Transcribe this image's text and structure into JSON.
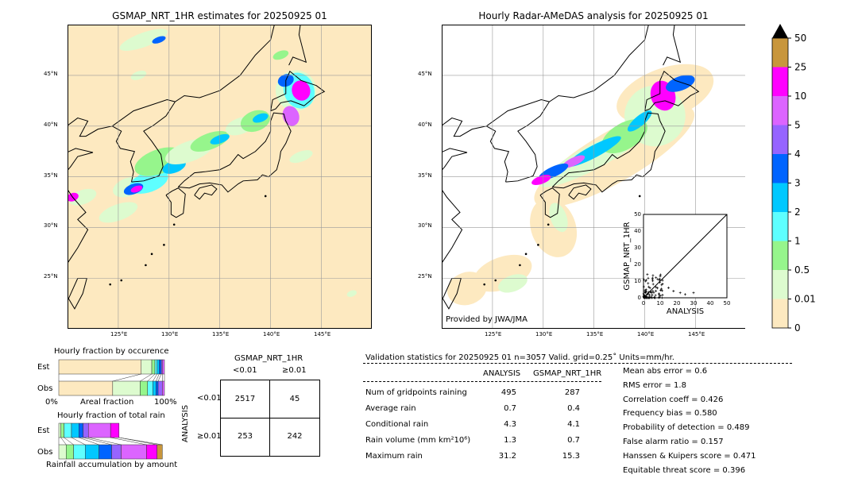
{
  "left_map": {
    "title": "GSMAP_NRT_1HR estimates for 20250925 01"
  },
  "right_map": {
    "title": "Hourly Radar-AMeDAS analysis for 20250925 01",
    "credit": "Provided by JWA/JMA"
  },
  "lon_ticks": [
    "125°E",
    "130°E",
    "135°E",
    "140°E",
    "145°E"
  ],
  "lat_ticks": [
    "45°N",
    "40°N",
    "35°N",
    "30°N",
    "25°N"
  ],
  "colorbar": {
    "labels": [
      "50",
      "25",
      "10",
      "5",
      "4",
      "3",
      "2",
      "1",
      "0.5",
      "0.01",
      "0"
    ],
    "colors": [
      "#c8963c",
      "#ff00ff",
      "#dc64ff",
      "#9664ff",
      "#0064ff",
      "#00c8ff",
      "#5effff",
      "#96f58c",
      "#ddfbcf",
      "#fde9c0"
    ]
  },
  "scatter": {
    "xlabel": "ANALYSIS",
    "ylabel": "GSMAP_NRT_1HR",
    "ticks": [
      "0",
      "10",
      "20",
      "30",
      "40",
      "50"
    ]
  },
  "occurrence": {
    "title": "Hourly fraction by occurence",
    "est": "Est",
    "obs": "Obs",
    "x0": "0%",
    "xlabel": "Areal fraction",
    "x1": "100%"
  },
  "totalrain": {
    "title": "Hourly fraction of total rain",
    "est": "Est",
    "obs": "Obs",
    "xlabel": "Rainfall accumulation by amount"
  },
  "contingency": {
    "title": "GSMAP_NRT_1HR",
    "col1": "<0.01",
    "col2": "≥0.01",
    "ylabel": "ANALYSIS",
    "row1": "<0.01",
    "row2": "≥0.01",
    "cells": [
      "2517",
      "45",
      "253",
      "242"
    ]
  },
  "stats": {
    "header": "Validation statistics for 20250925 01  n=3057 Valid. grid=0.25˚ Units=mm/hr.",
    "col_a": "ANALYSIS",
    "col_b": "GSMAP_NRT_1HR",
    "rows": [
      {
        "label": "Num of gridpoints raining",
        "a": "495",
        "b": "287"
      },
      {
        "label": "Average rain",
        "a": "0.7",
        "b": "0.4"
      },
      {
        "label": "Conditional rain",
        "a": "4.3",
        "b": "4.1"
      },
      {
        "label": "Rain volume (mm km²10⁶)",
        "a": "1.3",
        "b": "0.7"
      },
      {
        "label": "Maximum rain",
        "a": "31.2",
        "b": "15.3"
      }
    ],
    "scores": [
      "Mean abs error =    0.6",
      "RMS error =    1.8",
      "Correlation coeff =  0.426",
      "Frequency bias =  0.580",
      "Probability of detection =  0.489",
      "False alarm ratio =  0.157",
      "Hanssen & Kuipers score =  0.471",
      "Equitable threat score =  0.396"
    ]
  },
  "chart_data": {
    "type": "table",
    "contingency": {
      "rows": [
        "ANALYSIS <0.01",
        "ANALYSIS ≥0.01"
      ],
      "cols": [
        "GSMAP <0.01",
        "GSMAP ≥0.01"
      ],
      "values": [
        [
          2517,
          45
        ],
        [
          253,
          242
        ]
      ]
    },
    "scatter": {
      "xlim": [
        0,
        50
      ],
      "ylim": [
        0,
        50
      ]
    },
    "occurrence_est": [
      0.78,
      0.1,
      0.03,
      0.02,
      0.02,
      0.02,
      0.01,
      0.02
    ],
    "occurrence_obs": [
      0.51,
      0.26,
      0.07,
      0.05,
      0.03,
      0.02,
      0.04,
      0.02
    ],
    "totalrain_est": [
      0.02,
      0.03,
      0.07,
      0.07,
      0.04,
      0.05,
      0.21,
      0.08
    ],
    "totalrain_obs": [
      0.07,
      0.07,
      0.11,
      0.13,
      0.12,
      0.09,
      0.24,
      0.1,
      0.05
    ]
  }
}
